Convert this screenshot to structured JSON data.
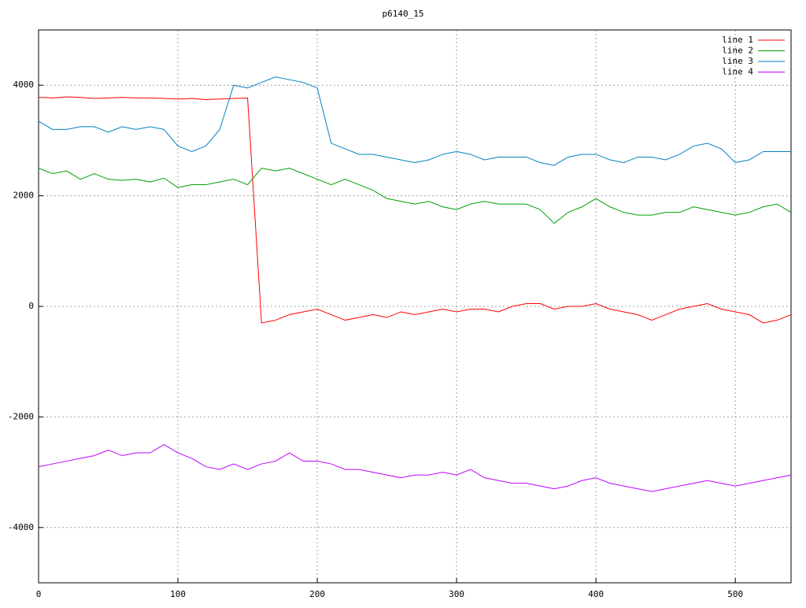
{
  "chart_data": {
    "type": "line",
    "title": "p6140_15",
    "x": [
      0,
      10,
      20,
      30,
      40,
      50,
      60,
      70,
      80,
      90,
      100,
      110,
      120,
      130,
      140,
      150,
      160,
      170,
      180,
      190,
      200,
      210,
      220,
      230,
      240,
      250,
      260,
      270,
      280,
      290,
      300,
      310,
      320,
      330,
      340,
      350,
      360,
      370,
      380,
      390,
      400,
      410,
      420,
      430,
      440,
      450,
      460,
      470,
      480,
      490,
      500,
      510,
      520,
      530,
      540
    ],
    "series": [
      {
        "name": "line 1",
        "color": "#ff0000",
        "values": [
          3780,
          3770,
          3790,
          3780,
          3760,
          3770,
          3780,
          3770,
          3770,
          3760,
          3750,
          3760,
          3740,
          3750,
          3760,
          3770,
          -300,
          -250,
          -150,
          -100,
          -50,
          -150,
          -250,
          -200,
          -150,
          -200,
          -100,
          -150,
          -100,
          -50,
          -100,
          -50,
          -50,
          -100,
          0,
          50,
          50,
          -50,
          0,
          0,
          50,
          -50,
          -100,
          -150,
          -250,
          -150,
          -50,
          0,
          50,
          -50,
          -100,
          -150,
          -300,
          -250,
          -150
        ]
      },
      {
        "name": "line 2",
        "color": "#00a000",
        "values": [
          2500,
          2400,
          2450,
          2300,
          2400,
          2300,
          2280,
          2300,
          2250,
          2320,
          2150,
          2200,
          2200,
          2250,
          2300,
          2200,
          2500,
          2450,
          2500,
          2400,
          2300,
          2200,
          2300,
          2200,
          2100,
          1950,
          1900,
          1850,
          1900,
          1800,
          1750,
          1850,
          1900,
          1850,
          1850,
          1850,
          1750,
          1500,
          1700,
          1800,
          1950,
          1800,
          1700,
          1650,
          1650,
          1700,
          1700,
          1800,
          1750,
          1700,
          1650,
          1700,
          1800,
          1850,
          1700
        ]
      },
      {
        "name": "line 3",
        "color": "#0080c0",
        "values": [
          3350,
          3200,
          3200,
          3250,
          3250,
          3150,
          3250,
          3200,
          3250,
          3200,
          2900,
          2800,
          2900,
          3200,
          4000,
          3950,
          4050,
          4150,
          4100,
          4050,
          3950,
          2950,
          2850,
          2750,
          2750,
          2700,
          2650,
          2600,
          2650,
          2750,
          2800,
          2750,
          2650,
          2700,
          2700,
          2700,
          2600,
          2550,
          2700,
          2750,
          2750,
          2650,
          2600,
          2700,
          2700,
          2650,
          2750,
          2900,
          2950,
          2850,
          2600,
          2650,
          2800,
          2800,
          2800
        ]
      },
      {
        "name": "line 4",
        "color": "#c000ff",
        "values": [
          -2900,
          -2850,
          -2800,
          -2750,
          -2700,
          -2600,
          -2700,
          -2650,
          -2650,
          -2500,
          -2650,
          -2750,
          -2900,
          -2950,
          -2850,
          -2950,
          -2850,
          -2800,
          -2650,
          -2800,
          -2800,
          -2850,
          -2950,
          -2950,
          -3000,
          -3050,
          -3100,
          -3050,
          -3050,
          -3000,
          -3050,
          -2950,
          -3100,
          -3150,
          -3200,
          -3200,
          -3250,
          -3300,
          -3250,
          -3150,
          -3100,
          -3200,
          -3250,
          -3300,
          -3350,
          -3300,
          -3250,
          -3200,
          -3150,
          -3200,
          -3250,
          -3200,
          -3150,
          -3100,
          -3050
        ]
      }
    ],
    "xlim": [
      0,
      540
    ],
    "xticks": [
      0,
      100,
      200,
      300,
      400,
      500
    ],
    "ylim": [
      -5000,
      5000
    ],
    "yticks": [
      -4000,
      -2000,
      0,
      2000,
      4000
    ],
    "grid": true,
    "legend": "top-right"
  }
}
